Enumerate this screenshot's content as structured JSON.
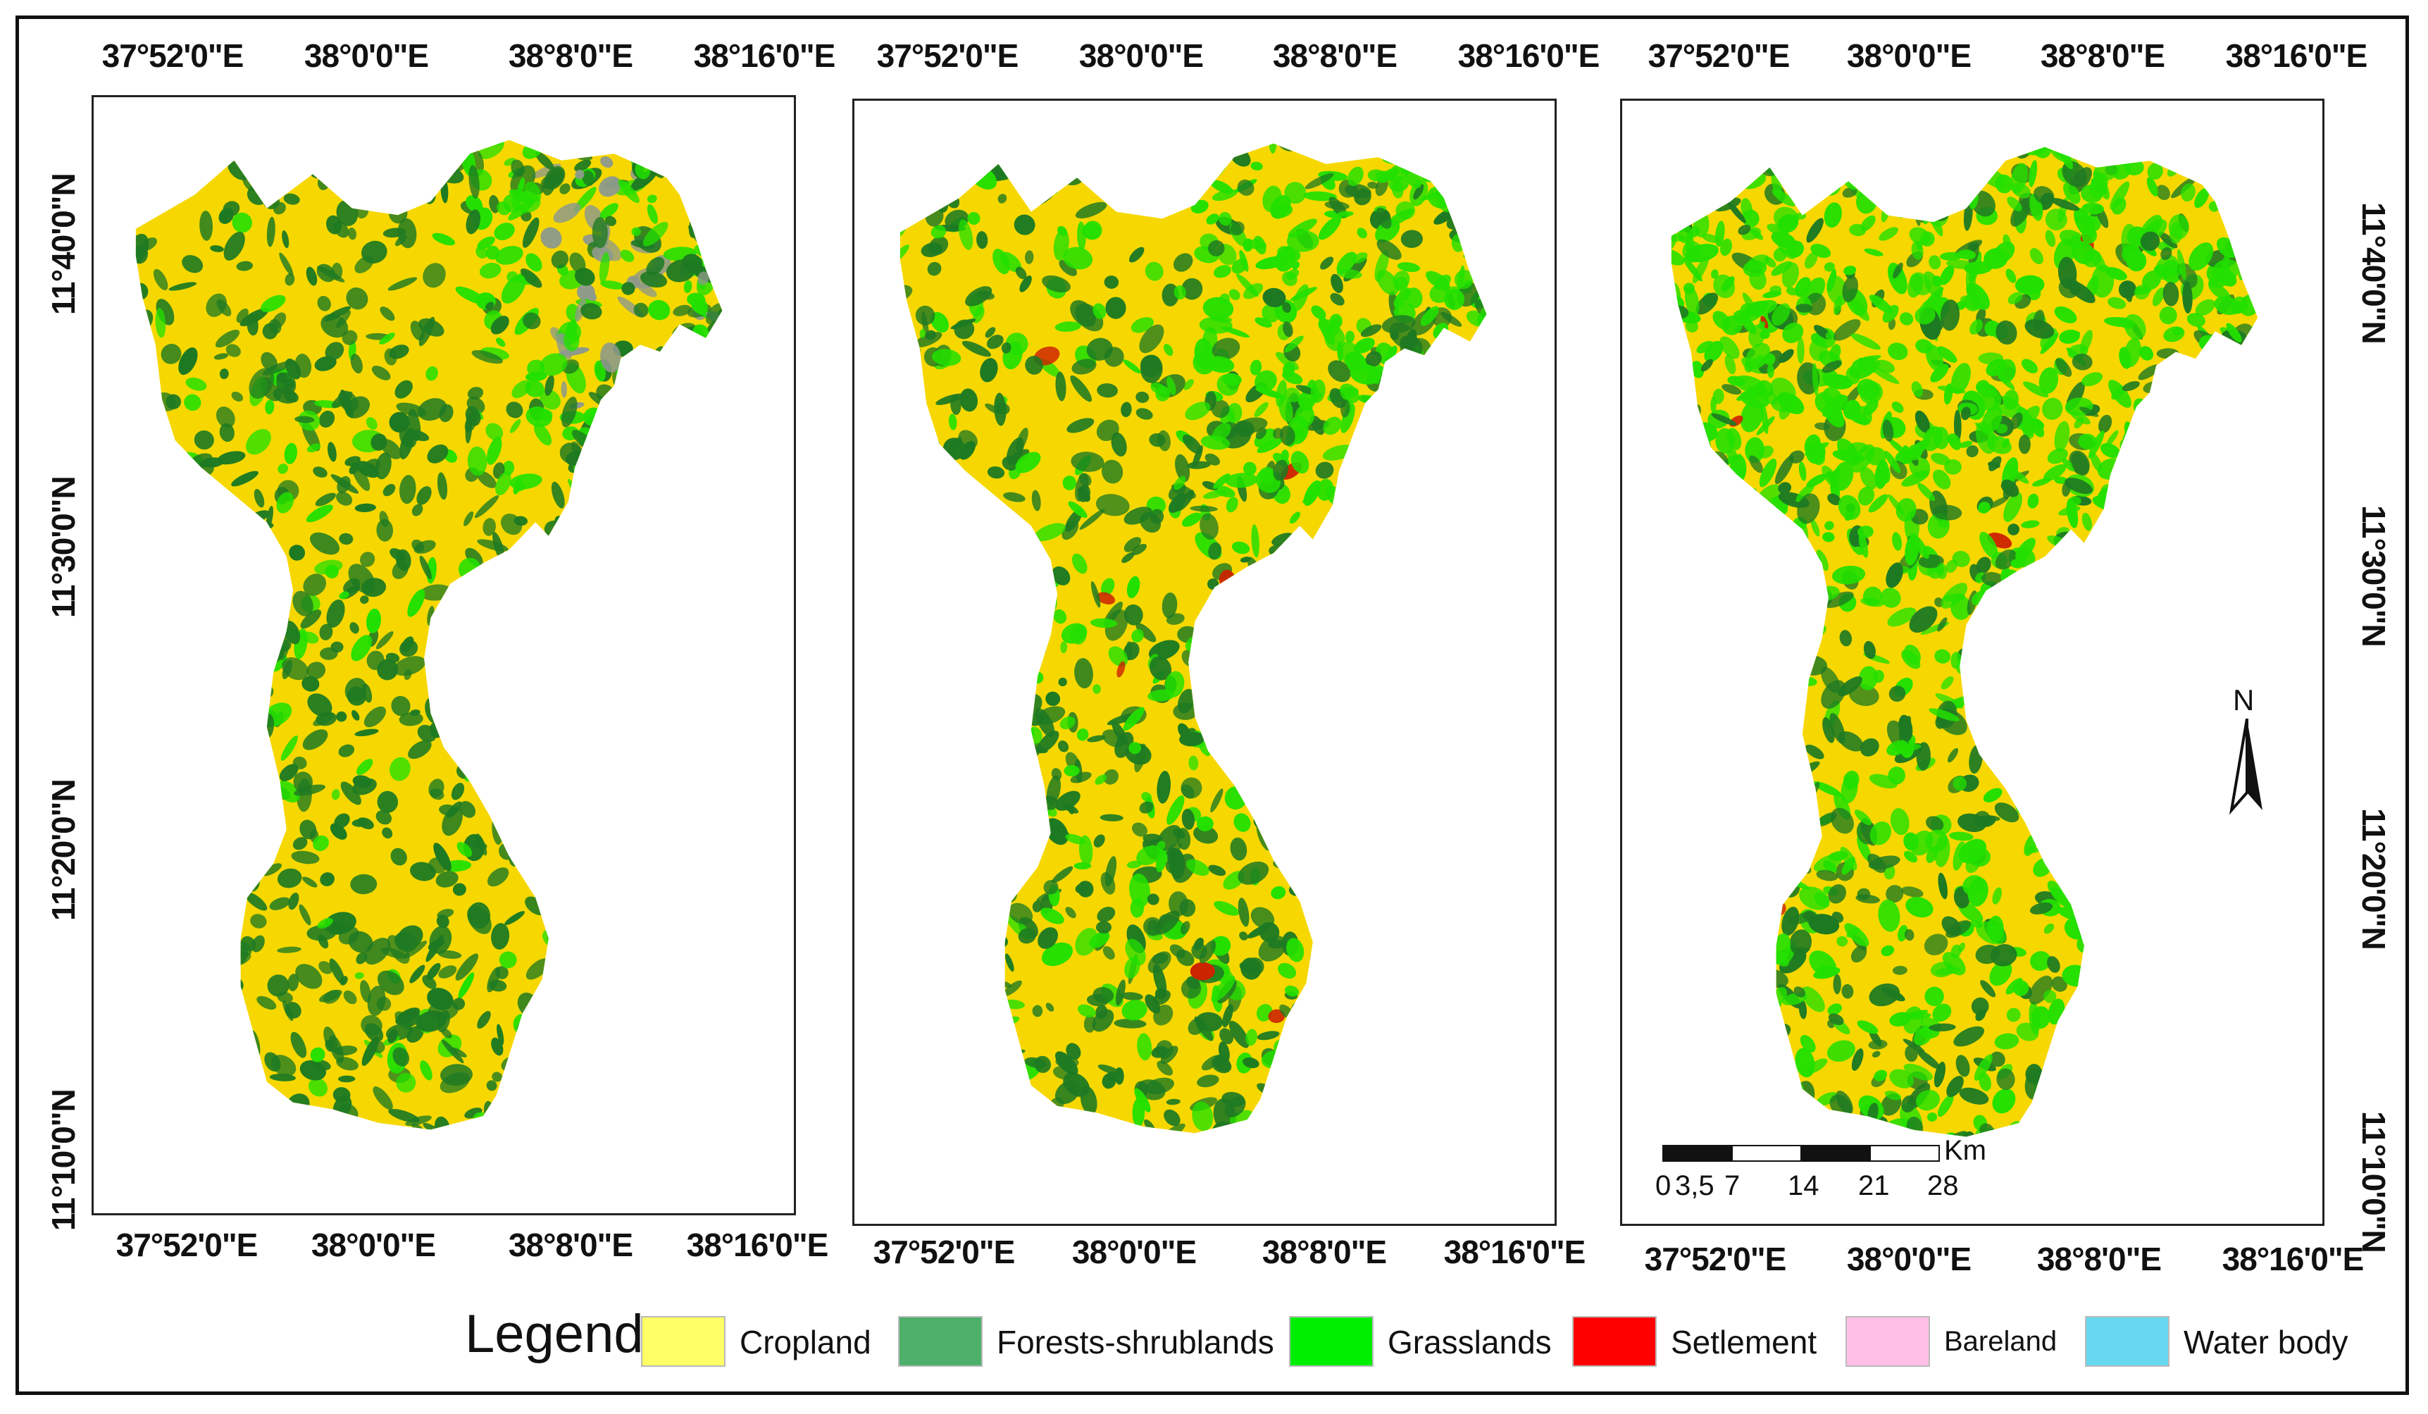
{
  "maps": [
    {
      "top_labels": [
        "37°52'0\"E",
        "38°0'0\"E",
        "38°8'0\"E",
        "38°16'0\"E"
      ],
      "bottom_labels": [
        "37°52'0\"E",
        "38°0'0\"E",
        "38°8'0\"E",
        "38°16'0\"E"
      ],
      "left_labels": [
        "11°40'0\"N",
        "11°30'0\"N",
        "11°20'0\"N",
        "11°10'0\"N"
      ],
      "dominant": "cropland"
    },
    {
      "top_labels": [
        "37°52'0\"E",
        "38°0'0\"E",
        "38°8'0\"E",
        "38°16'0\"E"
      ],
      "bottom_labels": [
        "37°52'0\"E",
        "38°0'0\"E",
        "38°8'0\"E",
        "38°16'0\"E"
      ],
      "dominant": "mixed"
    },
    {
      "top_labels": [
        "37°52'0\"E",
        "38°0'0\"E",
        "38°8'0\"E",
        "38°16'0\"E"
      ],
      "bottom_labels": [
        "37°52'0\"E",
        "38°0'0\"E",
        "38°8'0\"E",
        "38°16'0\"E"
      ],
      "right_labels": [
        "11°40'0\"N",
        "11°30'0\"N",
        "11°20'0\"N",
        "11°10'0\"N"
      ],
      "dominant": "grassland"
    }
  ],
  "scale_bar": {
    "unit": "Km",
    "ticks": [
      "0",
      "3,5",
      "7",
      "14",
      "21",
      "28"
    ]
  },
  "north_arrow": {
    "label": "N",
    "icon": "north-arrow-icon"
  },
  "legend": {
    "title": "Legend",
    "items": [
      {
        "label": "Cropland",
        "color": "#ffff66"
      },
      {
        "label": "Forests-shrublands",
        "color": "#4caf6a"
      },
      {
        "label": "Grasslands",
        "color": "#00ee00"
      },
      {
        "label": "Setlement",
        "color": "#ff0000"
      },
      {
        "label": "Bareland",
        "color": "#ffbfe6"
      },
      {
        "label": "Water body",
        "color": "#66d9f0"
      }
    ]
  },
  "colors": {
    "cropland": "#f6d800",
    "forest": "#1e7a22",
    "grassland": "#22e000",
    "bareland_gray": "#8e9a8a",
    "settlement": "#cc2200"
  }
}
